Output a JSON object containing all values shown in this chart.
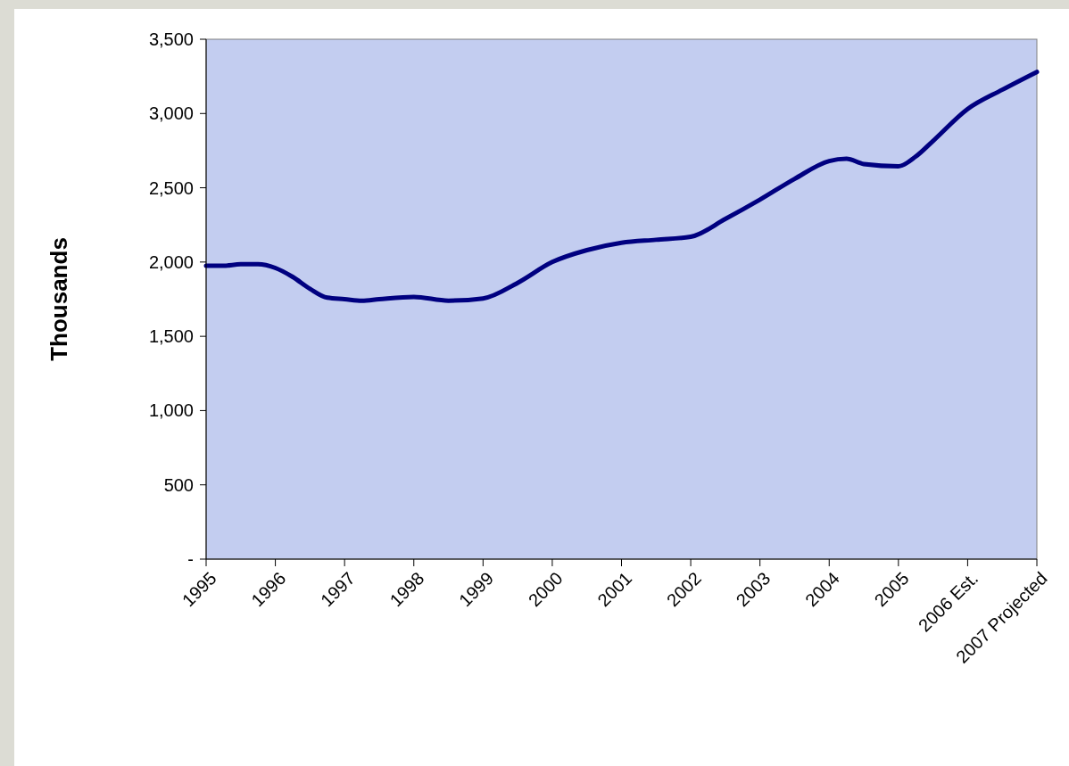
{
  "chart_data": {
    "type": "line",
    "ylabel": "Thousands",
    "x": [
      1995,
      1995.25,
      1995.5,
      1995.75,
      1996,
      1996.25,
      1996.5,
      1996.75,
      1997,
      1997.25,
      1997.5,
      1998,
      1998.5,
      1999,
      1999.5,
      2000,
      2000.5,
      2001,
      2001.5,
      2002,
      2002.5,
      2003,
      2003.5,
      2004,
      2004.25,
      2004.5,
      2005,
      2005.25,
      2005.5,
      2006,
      2006.5,
      2007
    ],
    "series": [
      {
        "color": "#000080",
        "values": [
          1975,
          1975,
          1985,
          1985,
          1960,
          1900,
          1820,
          1760,
          1750,
          1740,
          1750,
          1765,
          1740,
          1755,
          1860,
          2000,
          2080,
          2130,
          2150,
          2170,
          2290,
          2420,
          2560,
          2680,
          2695,
          2660,
          2645,
          2710,
          2815,
          3030,
          3160,
          3280
        ]
      }
    ],
    "xlim": [
      1995,
      2007
    ],
    "xticks": [
      1995,
      1996,
      1997,
      1998,
      1999,
      2000,
      2001,
      2002,
      2003,
      2004,
      2005,
      {
        "value": 2006,
        "label": "2006 Est."
      },
      {
        "value": 2007,
        "label": "2007 Projected"
      }
    ],
    "ylim": [
      0,
      3500
    ],
    "yticks": [
      {
        "value": 0,
        "label": "-"
      },
      {
        "value": 500,
        "label": "500"
      },
      {
        "value": 1000,
        "label": "1,000"
      },
      {
        "value": 1500,
        "label": "1,500"
      },
      {
        "value": 2000,
        "label": "2,000"
      },
      {
        "value": 2500,
        "label": "2,500"
      },
      {
        "value": 3000,
        "label": "3,000"
      },
      {
        "value": 3500,
        "label": "3,500"
      }
    ],
    "grid": false,
    "marker": "none",
    "line_style": "solid"
  }
}
